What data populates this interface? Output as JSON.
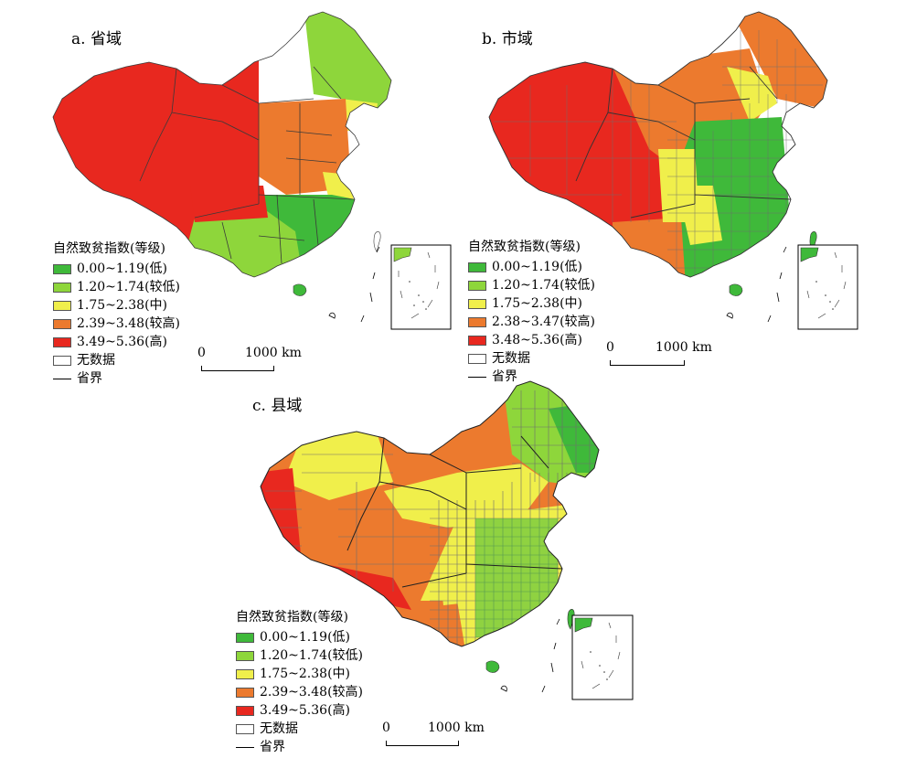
{
  "colors": {
    "low": "#3fb93a",
    "mid_low": "#8ed63b",
    "mid": "#f0ef4b",
    "mid_high": "#ec7a2e",
    "high": "#e8281f",
    "no_data": "#ffffff",
    "boundary": "#444444",
    "dense_boundary": "#6e6e6e"
  },
  "panels": [
    {
      "title": "a. 省域",
      "legend": {
        "title": "自然致贫指数(等级)",
        "classes": [
          {
            "label": "0.00~1.19(低)",
            "color": "#3fb93a"
          },
          {
            "label": "1.20~1.74(较低)",
            "color": "#8ed63b"
          },
          {
            "label": "1.75~2.38(中)",
            "color": "#f0ef4b"
          },
          {
            "label": "2.39~3.48(较高)",
            "color": "#ec7a2e"
          },
          {
            "label": "3.49~5.36(高)",
            "color": "#e8281f"
          }
        ],
        "no_data": "无数据",
        "boundary": "省界"
      },
      "scale": {
        "zero": "0",
        "distance": "1000 km"
      }
    },
    {
      "title": "b. 市域",
      "legend": {
        "title": "自然致贫指数(等级)",
        "classes": [
          {
            "label": "0.00~1.19(低)",
            "color": "#3fb93a"
          },
          {
            "label": "1.20~1.74(较低)",
            "color": "#8ed63b"
          },
          {
            "label": "1.75~2.38(中)",
            "color": "#f0ef4b"
          },
          {
            "label": "2.38~3.47(较高)",
            "color": "#ec7a2e"
          },
          {
            "label": "3.48~5.36(高)",
            "color": "#e8281f"
          }
        ],
        "no_data": "无数据",
        "boundary": "省界"
      },
      "scale": {
        "zero": "0",
        "distance": "1000 km"
      }
    },
    {
      "title": "c. 县域",
      "legend": {
        "title": "自然致贫指数(等级)",
        "classes": [
          {
            "label": "0.00~1.19(低)",
            "color": "#3fb93a"
          },
          {
            "label": "1.20~1.74(较低)",
            "color": "#8ed63b"
          },
          {
            "label": "1.75~2.38(中)",
            "color": "#f0ef4b"
          },
          {
            "label": "2.39~3.48(较高)",
            "color": "#ec7a2e"
          },
          {
            "label": "3.49~5.36(高)",
            "color": "#e8281f"
          }
        ],
        "no_data": "无数据",
        "boundary": "省界"
      },
      "scale": {
        "zero": "0",
        "distance": "1000 km"
      }
    }
  ]
}
